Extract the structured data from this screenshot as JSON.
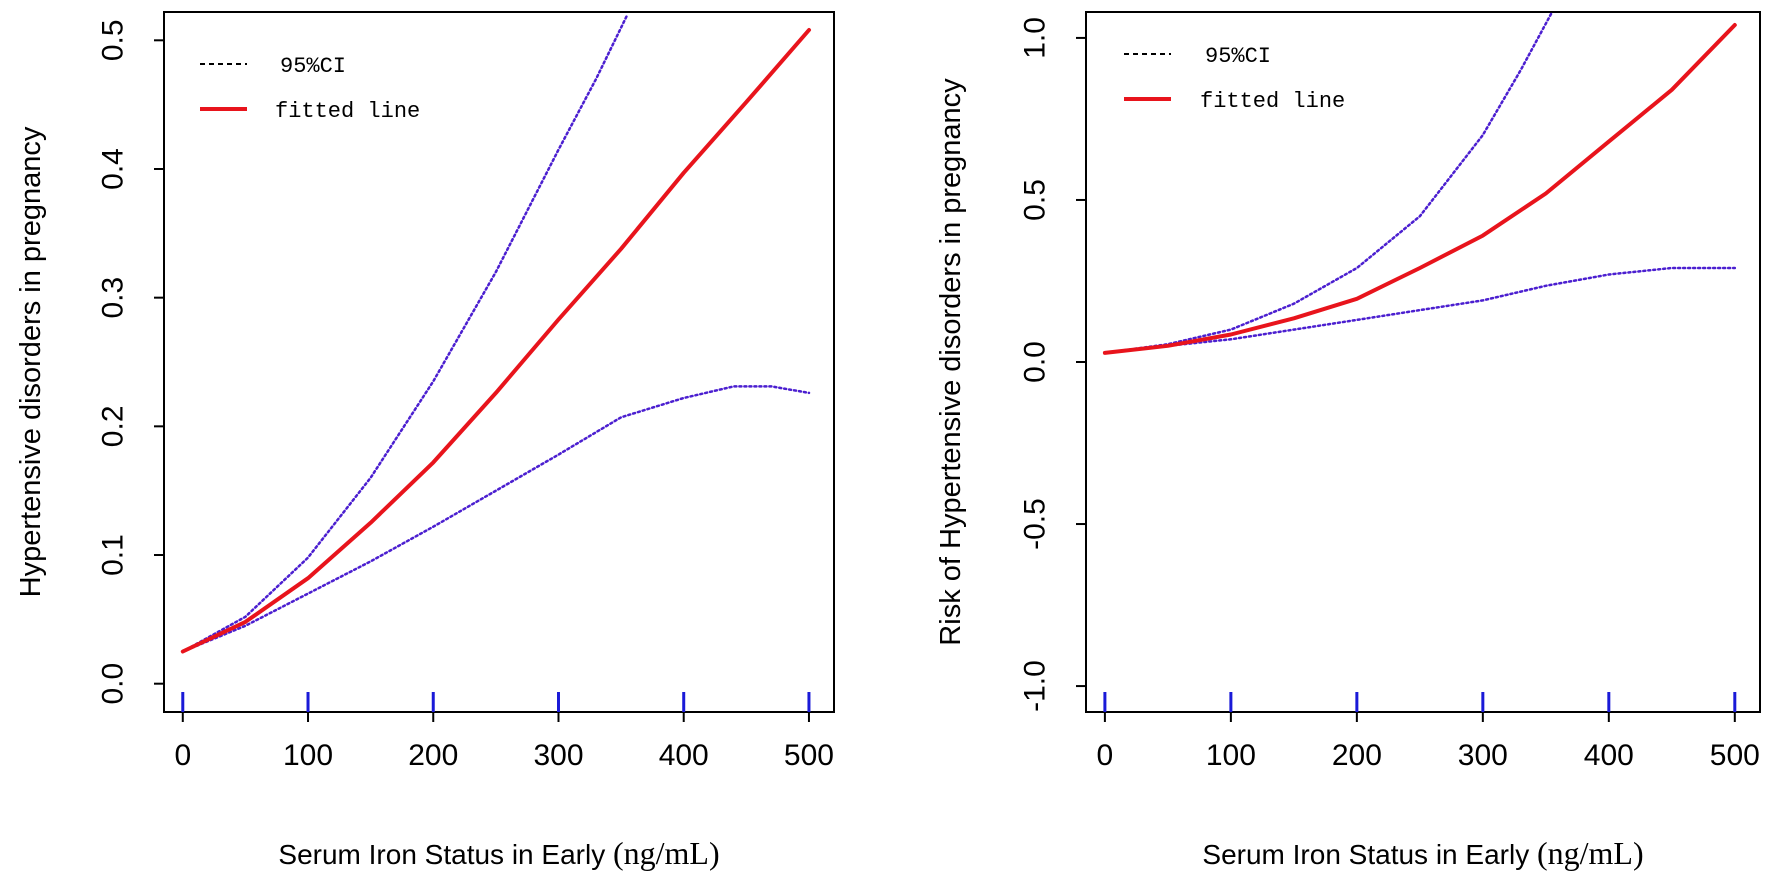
{
  "chart_data": [
    {
      "type": "line",
      "ylabel": "Hypertensive disorders in pregnancy",
      "xlabel_main": "Serum Iron Status in Early ",
      "xlabel_unit": "(ng/mL)",
      "xlim": [
        -15,
        520
      ],
      "ylim": [
        -0.022,
        0.522
      ],
      "xticks": [
        0,
        100,
        200,
        300,
        400,
        500
      ],
      "yticks": [
        0.0,
        0.1,
        0.2,
        0.3,
        0.4,
        0.5
      ],
      "ytick_labels": [
        "0.0",
        "0.1",
        "0.2",
        "0.3",
        "0.4",
        "0.5"
      ],
      "legend": {
        "position": "top-left",
        "entries": [
          {
            "label": "95%CI",
            "style": "dashed",
            "color": "#000000"
          },
          {
            "label": "fitted line",
            "style": "solid",
            "color": "#e8141c"
          }
        ]
      },
      "series": [
        {
          "name": "fitted line",
          "color": "#e8141c",
          "style": "solid",
          "x": [
            0,
            50,
            100,
            150,
            200,
            250,
            300,
            350,
            400,
            450,
            500
          ],
          "y": [
            0.025,
            0.048,
            0.082,
            0.125,
            0.172,
            0.226,
            0.283,
            0.338,
            0.397,
            0.452,
            0.508
          ]
        },
        {
          "name": "95%CI upper",
          "color": "#4b1fd0",
          "style": "dotted",
          "x": [
            0,
            50,
            100,
            150,
            200,
            250,
            300,
            330,
            355
          ],
          "y": [
            0.025,
            0.052,
            0.098,
            0.16,
            0.235,
            0.32,
            0.415,
            0.47,
            0.52
          ]
        },
        {
          "name": "95%CI lower",
          "color": "#4b1fd0",
          "style": "dotted",
          "x": [
            0,
            50,
            100,
            150,
            200,
            250,
            300,
            350,
            400,
            440,
            470,
            500
          ],
          "y": [
            0.025,
            0.045,
            0.07,
            0.095,
            0.122,
            0.15,
            0.178,
            0.207,
            0.222,
            0.231,
            0.231,
            0.226
          ]
        }
      ]
    },
    {
      "type": "line",
      "ylabel": "Risk of Hypertensive disorders in pregnancy",
      "xlabel_main": "Serum Iron Status in Early ",
      "xlabel_unit": "(ng/mL)",
      "xlim": [
        -15,
        520
      ],
      "ylim": [
        -1.08,
        1.08
      ],
      "xticks": [
        0,
        100,
        200,
        300,
        400,
        500
      ],
      "yticks": [
        -1.0,
        -0.5,
        0.0,
        0.5,
        1.0
      ],
      "ytick_labels": [
        "-1.0",
        "-0.5",
        "0.0",
        "0.5",
        "1.0"
      ],
      "legend": {
        "position": "top-left",
        "entries": [
          {
            "label": "95%CI",
            "style": "dashed",
            "color": "#000000"
          },
          {
            "label": "fitted line",
            "style": "solid",
            "color": "#e8141c"
          }
        ]
      },
      "series": [
        {
          "name": "fitted line",
          "color": "#e8141c",
          "style": "solid",
          "x": [
            0,
            50,
            100,
            150,
            200,
            250,
            300,
            350,
            400,
            450,
            500
          ],
          "y": [
            0.028,
            0.05,
            0.085,
            0.135,
            0.195,
            0.29,
            0.39,
            0.52,
            0.68,
            0.84,
            1.04
          ]
        },
        {
          "name": "95%CI upper",
          "color": "#4b1fd0",
          "style": "dotted",
          "x": [
            0,
            50,
            100,
            150,
            200,
            250,
            300,
            330,
            355
          ],
          "y": [
            0.028,
            0.055,
            0.1,
            0.18,
            0.29,
            0.45,
            0.7,
            0.9,
            1.08
          ]
        },
        {
          "name": "95%CI lower",
          "color": "#4b1fd0",
          "style": "dotted",
          "x": [
            0,
            50,
            100,
            150,
            200,
            250,
            300,
            350,
            400,
            450,
            500
          ],
          "y": [
            0.028,
            0.05,
            0.07,
            0.1,
            0.13,
            0.16,
            0.19,
            0.235,
            0.27,
            0.29,
            0.29
          ]
        }
      ]
    }
  ]
}
